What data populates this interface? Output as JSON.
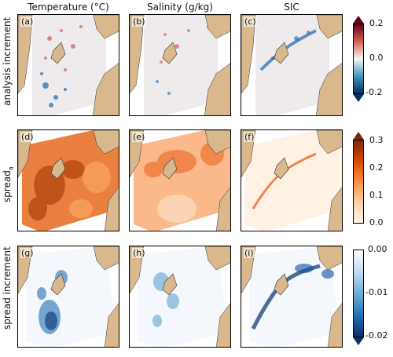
{
  "columns": [
    "Temperature (°C)",
    "Salinity (g/kg)",
    "SIC"
  ],
  "rows": [
    "analysis increment",
    "spreadₐ",
    "spread increment"
  ],
  "panel_labels": [
    "(a)",
    "(b)",
    "(c)",
    "(d)",
    "(e)",
    "(f)",
    "(g)",
    "(h)",
    "(i)"
  ],
  "colorbars": [
    {
      "ticks": [
        "0.2",
        "0.0",
        "-0.2"
      ],
      "cmap": "diverging red-white-blue",
      "top_color": "#67001f",
      "bottom_color": "#053061"
    },
    {
      "ticks": [
        "0.3",
        "0.2",
        "0.1",
        "0.0"
      ],
      "cmap": "sequential white-orange",
      "top_color": "#7f2704",
      "bottom_color": "#fff5eb"
    },
    {
      "ticks": [
        "0.00",
        "-0.01",
        "-0.02"
      ],
      "cmap": "sequential blue-white",
      "top_color": "#f7fbff",
      "bottom_color": "#08306b"
    }
  ],
  "colors": {
    "land": "#d8b88c",
    "ocean_gray": "#ece8ea",
    "grid_area": "#f2f1f2"
  }
}
